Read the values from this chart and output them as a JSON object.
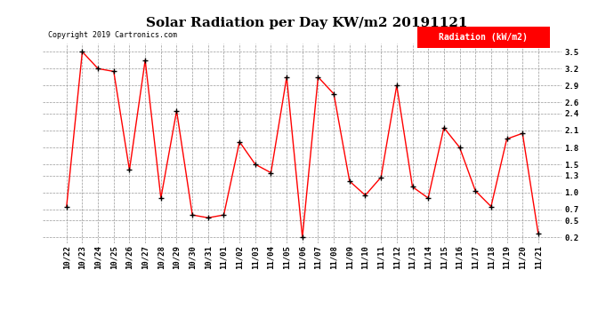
{
  "title": "Solar Radiation per Day KW/m2 20191121",
  "copyright_text": "Copyright 2019 Cartronics.com",
  "legend_label": "Radiation (kW/m2)",
  "categories": [
    "10/22",
    "10/23",
    "10/24",
    "10/25",
    "10/26",
    "10/27",
    "10/28",
    "10/29",
    "10/30",
    "10/31",
    "11/01",
    "11/02",
    "11/03",
    "11/04",
    "11/05",
    "11/06",
    "11/07",
    "11/08",
    "11/09",
    "11/10",
    "11/11",
    "11/12",
    "11/13",
    "11/14",
    "11/15",
    "11/16",
    "11/17",
    "11/18",
    "11/19",
    "11/20",
    "11/21"
  ],
  "values": [
    0.75,
    3.5,
    3.2,
    3.15,
    1.4,
    3.35,
    0.9,
    2.45,
    0.6,
    0.55,
    0.6,
    1.9,
    1.5,
    1.35,
    3.05,
    0.2,
    3.05,
    2.75,
    1.2,
    0.95,
    1.27,
    2.9,
    1.1,
    0.9,
    2.15,
    1.8,
    1.03,
    0.75,
    1.95,
    2.05,
    0.27
  ],
  "line_color": "#ff0000",
  "marker_color": "#000000",
  "background_color": "#ffffff",
  "grid_color": "#999999",
  "ylim": [
    0.1,
    3.65
  ],
  "yticks": [
    0.2,
    0.5,
    0.7,
    1.0,
    1.3,
    1.5,
    1.8,
    2.1,
    2.4,
    2.6,
    2.9,
    3.2,
    3.5
  ],
  "legend_bg": "#ff0000",
  "legend_text_color": "#ffffff",
  "title_fontsize": 11,
  "tick_fontsize": 6.5,
  "copyright_fontsize": 6
}
